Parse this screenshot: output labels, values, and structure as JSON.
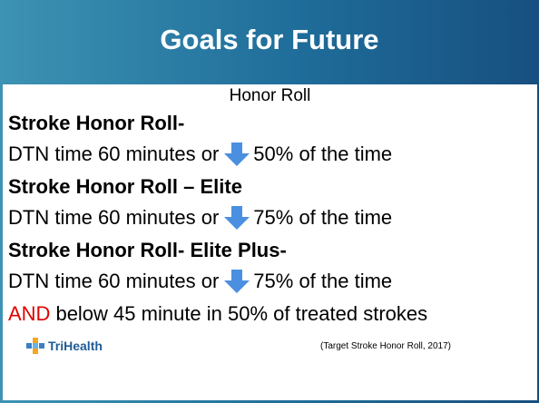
{
  "header": {
    "title": "Goals for Future"
  },
  "subtitle": "Honor Roll",
  "tiers": [
    {
      "name": "Stroke Honor Roll-",
      "criterion_start": "DTN time 60 minutes or",
      "criterion_end": "50% of the time"
    },
    {
      "name": "Stroke Honor Roll – Elite",
      "criterion_start": "DTN time 60 minutes or",
      "criterion_end": "75% of the time"
    },
    {
      "name": "Stroke Honor Roll- Elite Plus-",
      "criterion_start": "DTN time 60 minutes or",
      "criterion_end": "75% of the time"
    }
  ],
  "extra": {
    "highlight": "AND",
    "text": "below 45 minute in 50% of treated strokes"
  },
  "footer": {
    "logo": "TriHealth",
    "citation": "(Target Stroke Honor Roll, 2017)"
  }
}
